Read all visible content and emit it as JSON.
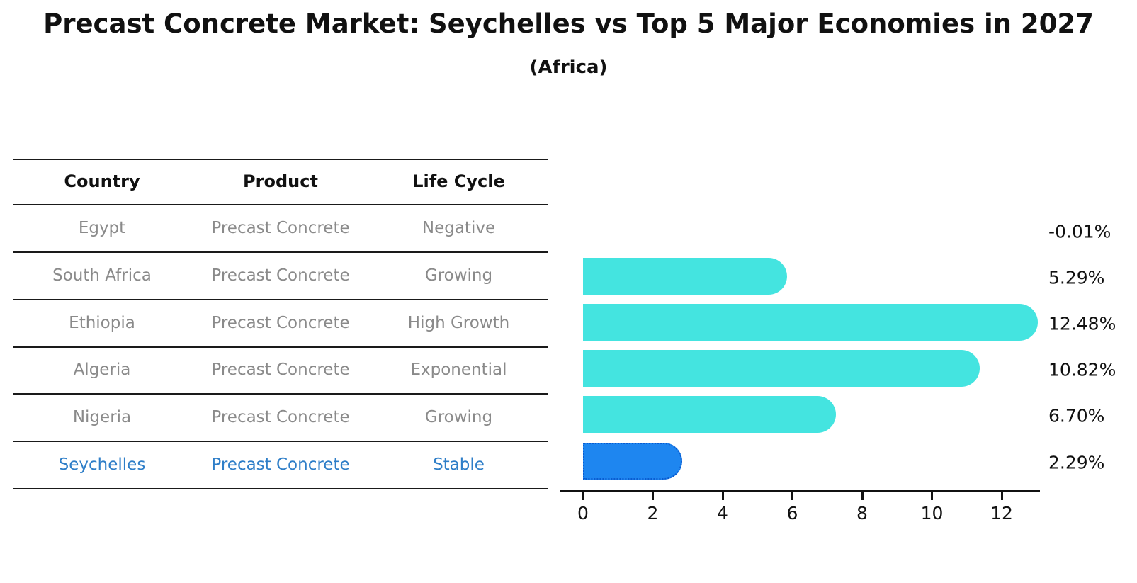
{
  "title": "Precast Concrete Market: Seychelles vs Top 5 Major Economies in 2027",
  "subtitle": "(Africa)",
  "table": {
    "headers": [
      "Country",
      "Product",
      "Life Cycle"
    ],
    "rows": [
      {
        "country": "Egypt",
        "product": "Precast Concrete",
        "life_cycle": "Negative",
        "highlighted": false
      },
      {
        "country": "South Africa",
        "product": "Precast Concrete",
        "life_cycle": "Growing",
        "highlighted": false
      },
      {
        "country": "Ethiopia",
        "product": "Precast Concrete",
        "life_cycle": "High Growth",
        "highlighted": false
      },
      {
        "country": "Algeria",
        "product": "Precast Concrete",
        "life_cycle": "Exponential",
        "highlighted": false
      },
      {
        "country": "Nigeria",
        "product": "Precast Concrete",
        "life_cycle": "Growing",
        "highlighted": false
      },
      {
        "country": "Seychelles",
        "product": "Precast Concrete",
        "life_cycle": "Stable",
        "highlighted": true
      }
    ]
  },
  "chart_data": {
    "type": "bar",
    "orientation": "horizontal",
    "title": "Precast Concrete Market: Seychelles vs Top 5 Major Economies in 2027 (Africa)",
    "categories": [
      "Egypt",
      "South Africa",
      "Ethiopia",
      "Algeria",
      "Nigeria",
      "Seychelles"
    ],
    "values": [
      -0.01,
      5.29,
      12.48,
      10.82,
      6.7,
      2.29
    ],
    "value_labels": [
      "-0.01%",
      "5.29%",
      "12.48%",
      "10.82%",
      "6.70%",
      "2.29%"
    ],
    "x_ticks": [
      0,
      2,
      4,
      6,
      8,
      10,
      12
    ],
    "xlim": [
      0,
      13.1
    ],
    "grid": false,
    "legend": "none",
    "highlight_index": 5,
    "colors": {
      "bar": "#44E4E0",
      "highlight_bar": "#1E86F0",
      "highlight_border": "#0A5BD0",
      "axis": "#111111",
      "label_text": "#111111",
      "table_text": "#8a8a8a",
      "table_header_text": "#111111",
      "highlight_text": "#2E7EC8"
    }
  }
}
